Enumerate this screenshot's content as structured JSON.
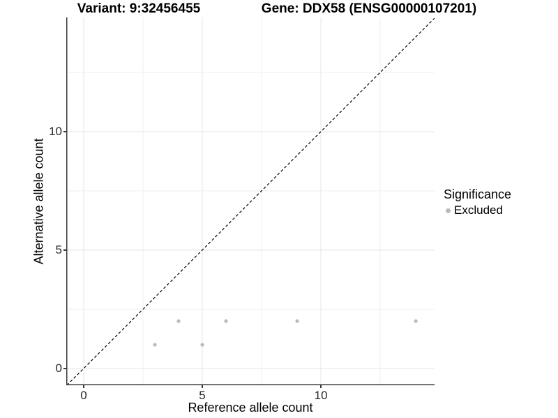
{
  "titles": {
    "variant": "Variant: 9:32456455",
    "gene": "Gene: DDX58 (ENSG00000107201)"
  },
  "axes": {
    "x_label": "Reference allele count",
    "y_label": "Alternative allele count"
  },
  "legend": {
    "title": "Significance",
    "items": [
      {
        "label": "Excluded",
        "color": "#bababa"
      }
    ]
  },
  "colors": {
    "grid_major": "#e4e4e4",
    "grid_minor": "#efefef",
    "axis_line": "#3a3a3a",
    "tick_mark": "#3a3a3a",
    "point": "#bababa",
    "identity_line": "#000000"
  },
  "chart_data": {
    "type": "scatter",
    "title": "Variant: 9:32456455 / Gene: DDX58 (ENSG00000107201)",
    "xlabel": "Reference allele count",
    "ylabel": "Alternative allele count",
    "series": [
      {
        "name": "Excluded",
        "points": [
          {
            "x": 3,
            "y": 1
          },
          {
            "x": 4,
            "y": 2
          },
          {
            "x": 5,
            "y": 1
          },
          {
            "x": 6,
            "y": 2
          },
          {
            "x": 9,
            "y": 2
          },
          {
            "x": 14,
            "y": 2
          }
        ]
      }
    ],
    "xlim": [
      -0.735,
      14.79
    ],
    "ylim": [
      -0.71,
      14.82
    ],
    "x_ticks": [
      0,
      5,
      10
    ],
    "y_ticks": [
      0,
      5,
      10
    ],
    "minor_ticks": [
      2.5,
      7.5,
      12.5
    ],
    "grid": "major and minor, light gray on white",
    "identity_line": "dashed y=x reference line",
    "legend_position": "right, vertically centered"
  }
}
